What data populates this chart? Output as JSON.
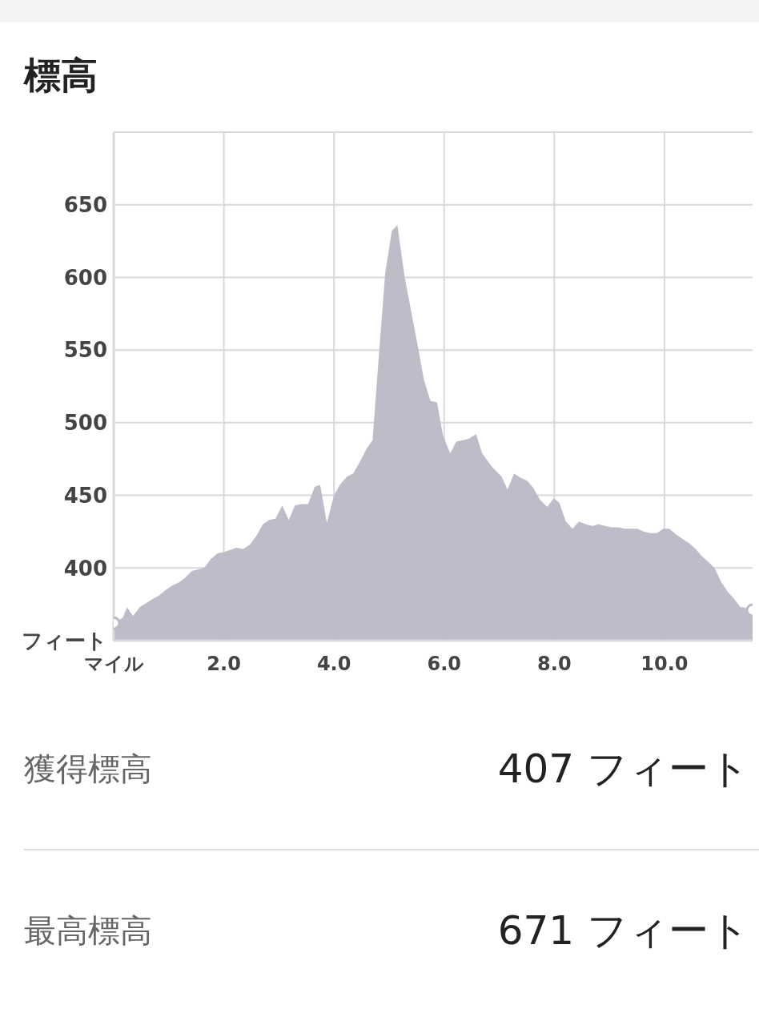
{
  "chart_data": {
    "type": "area",
    "title": "標高",
    "x": [
      0,
      0.17,
      0.24,
      0.35,
      0.47,
      0.6,
      0.72,
      0.82,
      0.95,
      1.07,
      1.18,
      1.29,
      1.42,
      1.64,
      1.76,
      1.88,
      2.01,
      2.23,
      2.35,
      2.47,
      2.59,
      2.71,
      2.82,
      2.94,
      3.06,
      3.18,
      3.29,
      3.41,
      3.53,
      3.65,
      3.75,
      3.87,
      4.0,
      4.12,
      4.24,
      4.35,
      4.47,
      4.59,
      4.7,
      4.82,
      4.93,
      5.05,
      5.15,
      5.28,
      5.4,
      5.52,
      5.63,
      5.75,
      5.87,
      5.98,
      6.11,
      6.22,
      6.34,
      6.45,
      6.58,
      6.69,
      6.86,
      7.04,
      7.15,
      7.27,
      7.39,
      7.51,
      7.62,
      7.74,
      7.87,
      7.99,
      8.09,
      8.21,
      8.33,
      8.45,
      8.57,
      8.69,
      8.8,
      8.92,
      9.04,
      9.16,
      9.27,
      9.39,
      9.51,
      9.63,
      9.74,
      9.86,
      9.98,
      10.09,
      10.21,
      10.33,
      10.45,
      10.57,
      10.68,
      10.8,
      10.91,
      11.02,
      11.14,
      11.26,
      11.38,
      11.43,
      11.6
    ],
    "series": [
      {
        "color": "#b9b9c7",
        "values": [
          362,
          366,
          373,
          367,
          373,
          376,
          379,
          381,
          385,
          388,
          390,
          393,
          398,
          400,
          406,
          410,
          411,
          414,
          413,
          416,
          422,
          430,
          433,
          434,
          443,
          433,
          443,
          444,
          444,
          456,
          457,
          431,
          450,
          458,
          463,
          465,
          473,
          482,
          488,
          549,
          603,
          632,
          636,
          601,
          577,
          553,
          530,
          515,
          514,
          491,
          479,
          487,
          488,
          489,
          492,
          479,
          470,
          463,
          454,
          465,
          462,
          460,
          455,
          447,
          442,
          448,
          445,
          432,
          427,
          432,
          430,
          429,
          430,
          429,
          428,
          428,
          427,
          427,
          427,
          425,
          424,
          424,
          427,
          427,
          423,
          420,
          417,
          413,
          408,
          404,
          400,
          391,
          384,
          379,
          373,
          373,
          371
        ]
      }
    ],
    "xlim": [
      0,
      11.6
    ],
    "ylim": [
      350,
      700
    ],
    "xticks": [
      {
        "value": 0,
        "label": "マイル"
      },
      {
        "value": 2,
        "label": "2.0"
      },
      {
        "value": 4,
        "label": "4.0"
      },
      {
        "value": 6,
        "label": "6.0"
      },
      {
        "value": 8,
        "label": "8.0"
      },
      {
        "value": 10,
        "label": "10.0"
      }
    ],
    "yticks": [
      {
        "value": 350,
        "label": "フィート"
      },
      400,
      450,
      500,
      550,
      600,
      650,
      {
        "value": 700,
        "label": null
      }
    ],
    "grid": true,
    "legend": false,
    "annotations": [
      "獲得標高",
      "407 フィート",
      "最高標高",
      "671 フィート"
    ]
  }
}
